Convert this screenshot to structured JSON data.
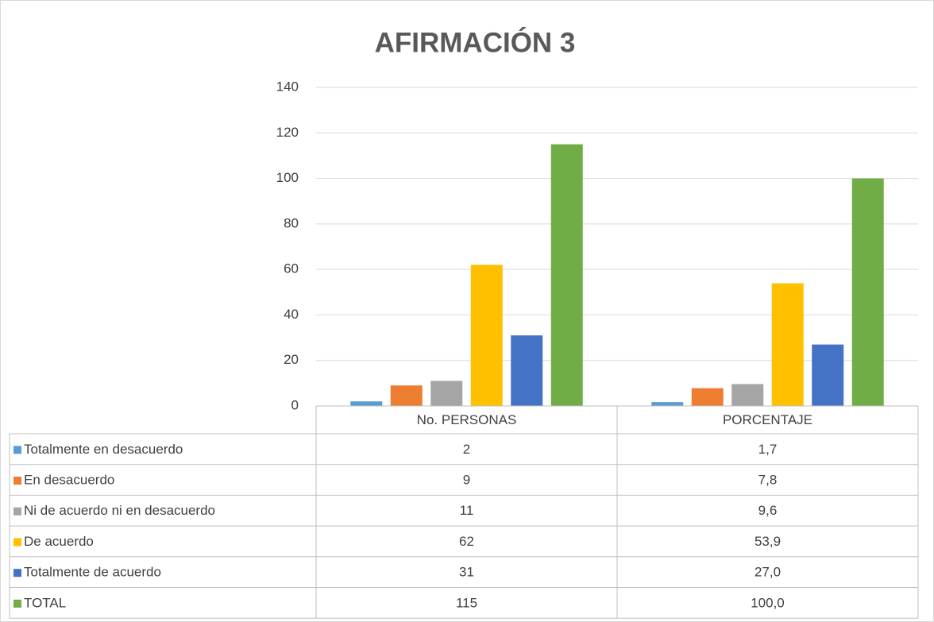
{
  "chart_data": {
    "type": "bar",
    "title": "AFIRMACIÓN 3",
    "categories": [
      "No. PERSONAS",
      "PORCENTAJE"
    ],
    "series": [
      {
        "name": "Totalmente en desacuerdo",
        "color": "#5b9bd5",
        "values": [
          2,
          1.7
        ],
        "value_labels": [
          "2",
          "1,7"
        ]
      },
      {
        "name": "En desacuerdo",
        "color": "#ed7d31",
        "values": [
          9,
          7.8
        ],
        "value_labels": [
          "9",
          "7,8"
        ]
      },
      {
        "name": "Ni de acuerdo ni en desacuerdo",
        "color": "#a5a5a5",
        "values": [
          11,
          9.6
        ],
        "value_labels": [
          "11",
          "9,6"
        ]
      },
      {
        "name": "De acuerdo",
        "color": "#ffc000",
        "values": [
          62,
          53.9
        ],
        "value_labels": [
          "62",
          "53,9"
        ]
      },
      {
        "name": "Totalmente de acuerdo",
        "color": "#4472c4",
        "values": [
          31,
          27.0
        ],
        "value_labels": [
          "31",
          "27,0"
        ]
      },
      {
        "name": "TOTAL",
        "color": "#70ad47",
        "values": [
          115,
          100.0
        ],
        "value_labels": [
          "115",
          "100,0"
        ]
      }
    ],
    "ylim": [
      0,
      140
    ],
    "yticks": [
      0,
      20,
      40,
      60,
      80,
      100,
      120,
      140
    ],
    "grid": true
  }
}
